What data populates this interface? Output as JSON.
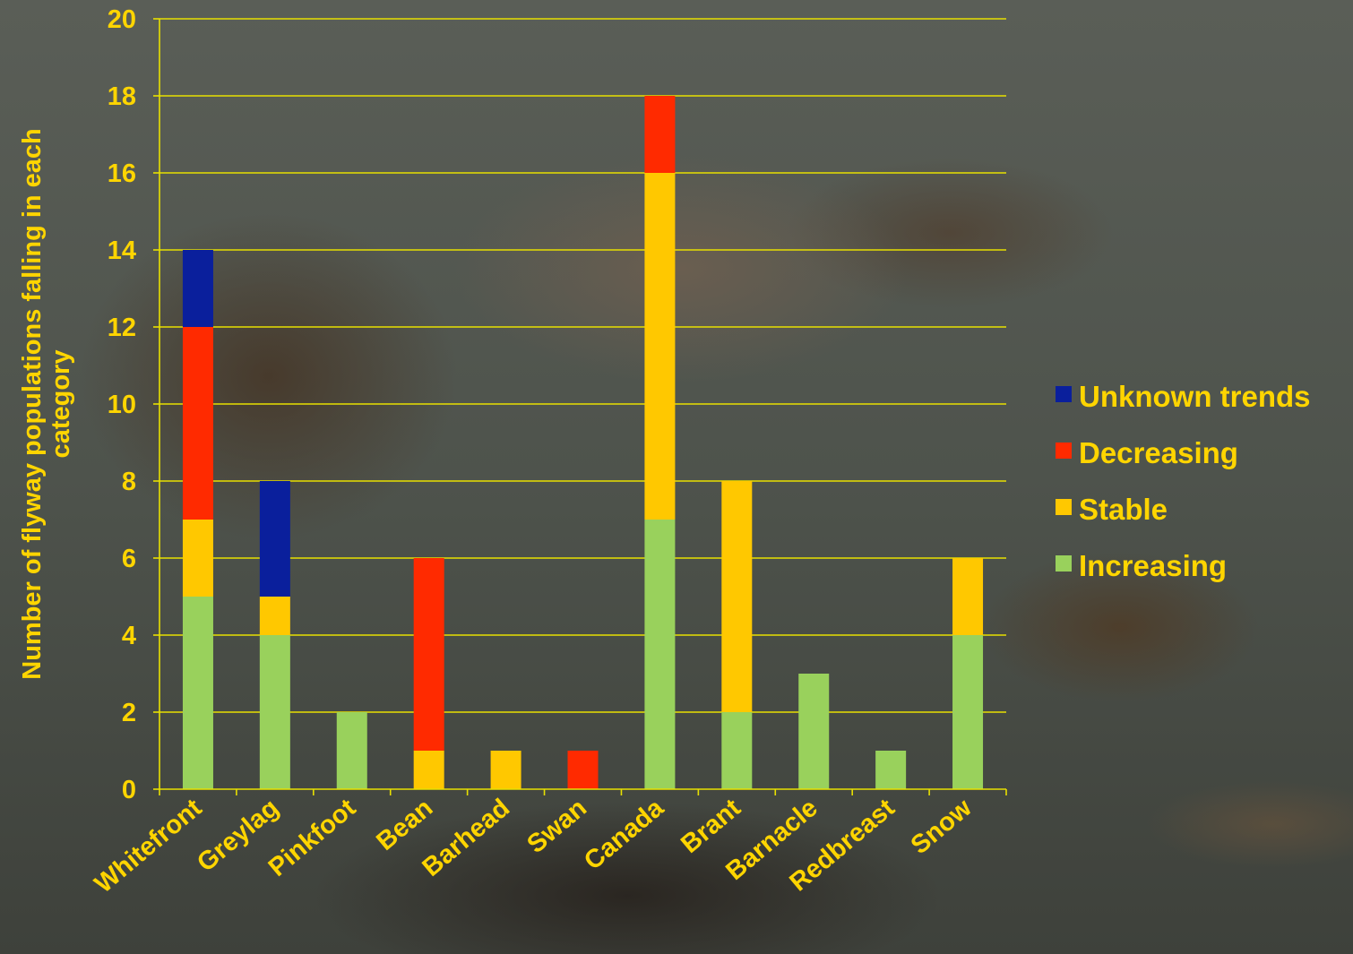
{
  "chart_data": {
    "type": "bar",
    "stacked": true,
    "categories": [
      "Whitefront",
      "Greylag",
      "Pinkfoot",
      "Bean",
      "Barhead",
      "Swan",
      "Canada",
      "Brant",
      "Barnacle",
      "Redbreast",
      "Snow"
    ],
    "series": [
      {
        "name": "Increasing",
        "color": "#99d15c",
        "values": [
          5,
          4,
          2,
          0,
          0,
          0,
          7,
          2,
          3,
          1,
          4
        ]
      },
      {
        "name": "Stable",
        "color": "#ffc800",
        "values": [
          2,
          1,
          0,
          1,
          1,
          0,
          9,
          6,
          0,
          0,
          2
        ]
      },
      {
        "name": "Decreasing",
        "color": "#ff2a00",
        "values": [
          5,
          0,
          0,
          5,
          0,
          1,
          2,
          0,
          0,
          0,
          0
        ]
      },
      {
        "name": "Unknown trends",
        "color": "#0a1f9c",
        "values": [
          2,
          3,
          0,
          0,
          0,
          0,
          0,
          0,
          0,
          0,
          0
        ]
      }
    ],
    "ylabel": "Number of flyway populations falling in each category",
    "xlabel": "",
    "ylim": [
      0,
      20
    ],
    "yticks": [
      0,
      2,
      4,
      6,
      8,
      10,
      12,
      14,
      16,
      18,
      20
    ],
    "grid": true,
    "legend_position": "right",
    "text_color": "#ffd500",
    "grid_color": "#e8e000"
  }
}
